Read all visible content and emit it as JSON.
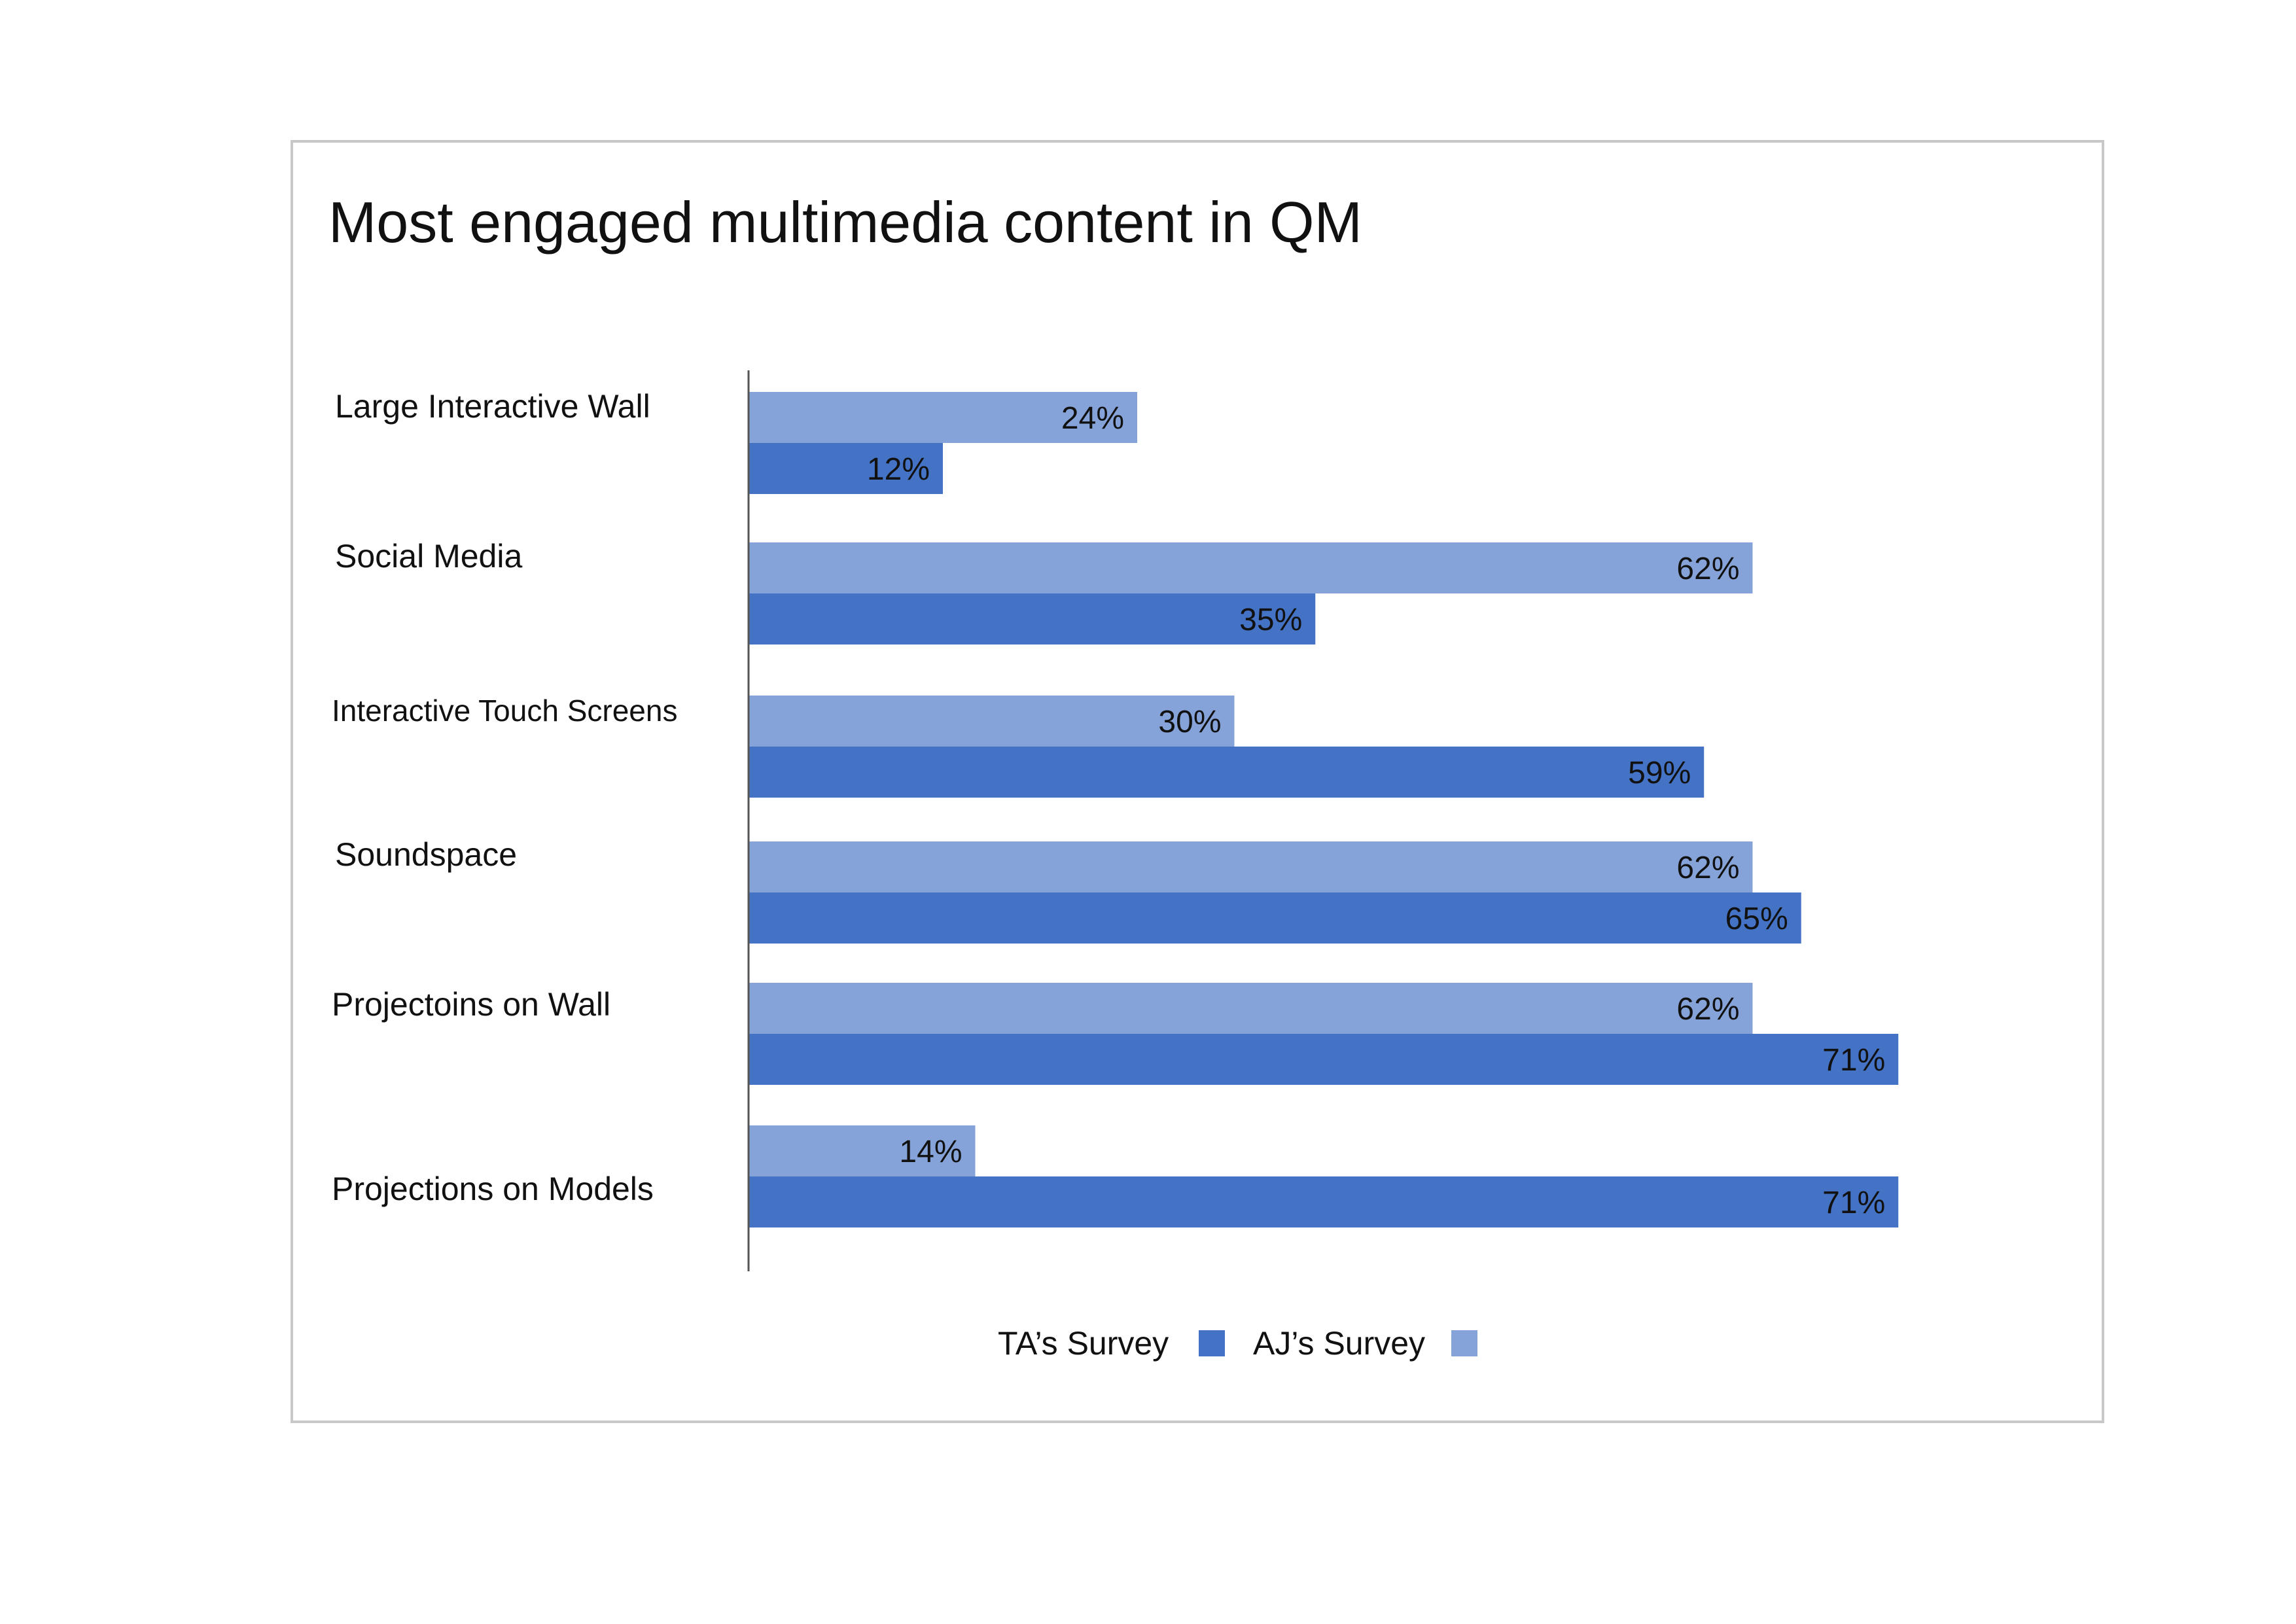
{
  "chart_data": {
    "type": "bar",
    "orientation": "horizontal",
    "title": "Most engaged multimedia content in QM",
    "categories": [
      "Large Interactive Wall",
      "Social Media",
      "Interactive Touch Screens",
      "Soundspace",
      "Projectoins on Wall",
      "Projections on Models"
    ],
    "series": [
      {
        "name": "AJ’s Survey",
        "color": "#86a3d9",
        "values": [
          24,
          62,
          30,
          62,
          62,
          14
        ],
        "labels": [
          "24%",
          "62%",
          "30%",
          "62%",
          "62%",
          "14%"
        ]
      },
      {
        "name": "TA’s Survey",
        "color": "#4472c4",
        "values": [
          12,
          35,
          59,
          65,
          71,
          71
        ],
        "labels": [
          "12%",
          "35%",
          "59%",
          "65%",
          "71%",
          "71%"
        ]
      }
    ],
    "value_unit": "%",
    "xlim": [
      0,
      100
    ],
    "grid": false,
    "legend": {
      "placement": "bottom",
      "entries": [
        "TA’s Survey",
        "AJ’s Survey"
      ]
    }
  }
}
